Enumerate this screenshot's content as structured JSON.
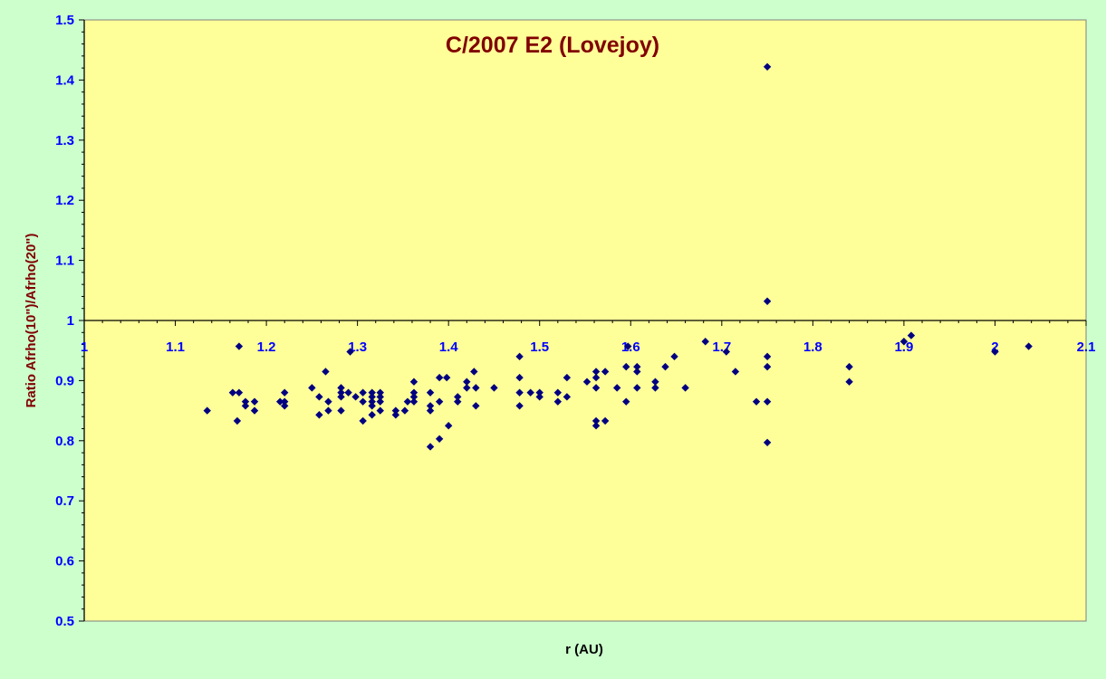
{
  "colors": {
    "background": "#ccffcc",
    "plot_area": "#ffff99",
    "marker": "#000080",
    "tick_label": "#0000ff",
    "title": "#800000"
  },
  "chart_data": {
    "type": "scatter",
    "title": "C/2007 E2 (Lovejoy)",
    "xlabel": "r (AU)",
    "ylabel": "Ratio Afrho(10\")/Afrho(20\")",
    "xlim": [
      1,
      2.1
    ],
    "ylim": [
      0.5,
      1.5
    ],
    "x_axis_crosses_at_y": 1,
    "x_ticks": [
      "1",
      "1.1",
      "1.2",
      "1.3",
      "1.4",
      "1.5",
      "1.6",
      "1.7",
      "1.8",
      "1.9",
      "2",
      "2.1"
    ],
    "y_ticks": [
      "0.5",
      "0.6",
      "0.7",
      "0.8",
      "0.9",
      "1",
      "1.1",
      "1.2",
      "1.3",
      "1.4",
      "1.5"
    ],
    "gridlines": false,
    "legend": "none",
    "marker": "diamond",
    "points": [
      [
        1.135,
        0.85
      ],
      [
        1.163,
        0.88
      ],
      [
        1.168,
        0.833
      ],
      [
        1.17,
        0.88
      ],
      [
        1.17,
        0.957
      ],
      [
        1.177,
        0.865
      ],
      [
        1.177,
        0.858
      ],
      [
        1.187,
        0.865
      ],
      [
        1.187,
        0.85
      ],
      [
        1.215,
        0.865
      ],
      [
        1.22,
        0.88
      ],
      [
        1.22,
        0.865
      ],
      [
        1.22,
        0.858
      ],
      [
        1.25,
        0.888
      ],
      [
        1.258,
        0.873
      ],
      [
        1.258,
        0.843
      ],
      [
        1.265,
        0.915
      ],
      [
        1.268,
        0.865
      ],
      [
        1.268,
        0.85
      ],
      [
        1.282,
        0.888
      ],
      [
        1.282,
        0.88
      ],
      [
        1.282,
        0.873
      ],
      [
        1.282,
        0.85
      ],
      [
        1.29,
        0.88
      ],
      [
        1.292,
        0.948
      ],
      [
        1.298,
        0.873
      ],
      [
        1.306,
        0.88
      ],
      [
        1.306,
        0.865
      ],
      [
        1.306,
        0.833
      ],
      [
        1.316,
        0.88
      ],
      [
        1.316,
        0.873
      ],
      [
        1.316,
        0.865
      ],
      [
        1.316,
        0.858
      ],
      [
        1.316,
        0.843
      ],
      [
        1.325,
        0.88
      ],
      [
        1.325,
        0.873
      ],
      [
        1.325,
        0.865
      ],
      [
        1.325,
        0.85
      ],
      [
        1.342,
        0.85
      ],
      [
        1.342,
        0.843
      ],
      [
        1.352,
        0.85
      ],
      [
        1.355,
        0.865
      ],
      [
        1.362,
        0.898
      ],
      [
        1.362,
        0.88
      ],
      [
        1.362,
        0.873
      ],
      [
        1.362,
        0.865
      ],
      [
        1.38,
        0.88
      ],
      [
        1.38,
        0.858
      ],
      [
        1.38,
        0.85
      ],
      [
        1.38,
        0.79
      ],
      [
        1.39,
        0.905
      ],
      [
        1.39,
        0.865
      ],
      [
        1.39,
        0.803
      ],
      [
        1.398,
        0.905
      ],
      [
        1.4,
        0.825
      ],
      [
        1.41,
        0.873
      ],
      [
        1.41,
        0.865
      ],
      [
        1.42,
        0.898
      ],
      [
        1.42,
        0.888
      ],
      [
        1.428,
        0.915
      ],
      [
        1.43,
        0.888
      ],
      [
        1.43,
        0.858
      ],
      [
        1.45,
        0.888
      ],
      [
        1.478,
        0.94
      ],
      [
        1.478,
        0.905
      ],
      [
        1.478,
        0.88
      ],
      [
        1.478,
        0.858
      ],
      [
        1.49,
        0.88
      ],
      [
        1.5,
        0.88
      ],
      [
        1.5,
        0.873
      ],
      [
        1.52,
        0.88
      ],
      [
        1.52,
        0.865
      ],
      [
        1.53,
        0.905
      ],
      [
        1.53,
        0.873
      ],
      [
        1.552,
        0.898
      ],
      [
        1.562,
        0.915
      ],
      [
        1.562,
        0.905
      ],
      [
        1.562,
        0.888
      ],
      [
        1.562,
        0.833
      ],
      [
        1.562,
        0.825
      ],
      [
        1.572,
        0.915
      ],
      [
        1.572,
        0.833
      ],
      [
        1.585,
        0.888
      ],
      [
        1.595,
        0.923
      ],
      [
        1.595,
        0.865
      ],
      [
        1.597,
        0.957
      ],
      [
        1.607,
        0.923
      ],
      [
        1.607,
        0.915
      ],
      [
        1.607,
        0.888
      ],
      [
        1.627,
        0.898
      ],
      [
        1.627,
        0.888
      ],
      [
        1.638,
        0.923
      ],
      [
        1.648,
        0.94
      ],
      [
        1.66,
        0.888
      ],
      [
        1.682,
        0.965
      ],
      [
        1.705,
        0.948
      ],
      [
        1.715,
        0.915
      ],
      [
        1.738,
        0.865
      ],
      [
        1.75,
        1.422
      ],
      [
        1.75,
        1.032
      ],
      [
        1.75,
        0.94
      ],
      [
        1.75,
        0.923
      ],
      [
        1.75,
        0.865
      ],
      [
        1.75,
        0.797
      ],
      [
        1.84,
        0.923
      ],
      [
        1.84,
        0.898
      ],
      [
        1.9,
        0.965
      ],
      [
        1.908,
        0.975
      ],
      [
        2.0,
        0.948
      ],
      [
        2.037,
        0.957
      ]
    ]
  }
}
